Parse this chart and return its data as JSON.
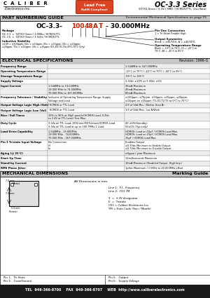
{
  "title_series": "OC-3.3 Series",
  "subtitle": "5X7X1.6mm / 3.3V / SMD / HCMOS/TTL  Oscillator",
  "company": "C  A  L  I  B  E  R",
  "company2": "Electronics Inc.",
  "rohs_line1": "Lead Free",
  "rohs_line2": "RoHS Compliant",
  "section1_title": "PART NUMBERING GUIDE",
  "section1_right": "Environmental Mechanical Specifications on page F5",
  "electrical_title": "ELECTRICAL SPECIFICATIONS",
  "electrical_rev": "Revision: 1996-G",
  "mech_title": "MECHANICAL DIMENSIONS",
  "mech_right": "Marking Guide",
  "marking_lines": [
    "Line 1:  F1 - Frequency",
    "Line 2:  CE3 YM",
    "",
    "3  =  3.3V designator",
    "E  =  Tristate",
    "CE3 = Caliber Electronics Inc.",
    "YM = Date Code (Year / Month)"
  ],
  "pin_labels": [
    "Pin 1:   Tri-State",
    "Pin 3:   Case/Ground",
    "Pin 5:   Output",
    "Pin 6:   Supply Voltage"
  ],
  "footer": "TEL  949-366-8700    FAX  949-366-8707    WEB  http://www.caliberelectronics.com",
  "red_color": "#cc2200",
  "rohs_color": "#dd4422",
  "header_bar": "#c8c8c8",
  "row_odd": "#eeeeee",
  "row_even": "#ffffff"
}
